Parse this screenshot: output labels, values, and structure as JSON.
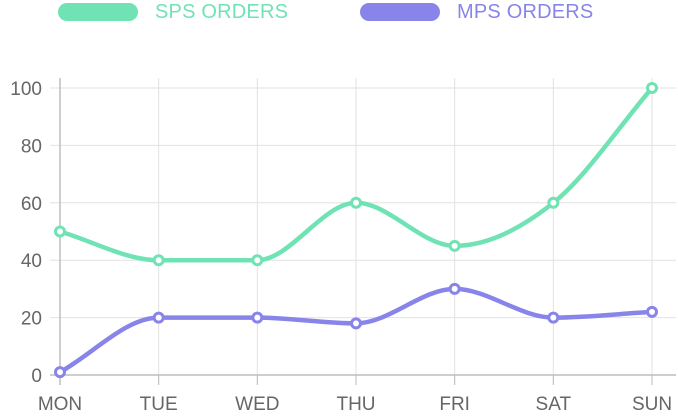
{
  "chart_data": {
    "type": "line",
    "categories": [
      "MON",
      "TUE",
      "WED",
      "THU",
      "FRI",
      "SAT",
      "SUN"
    ],
    "series": [
      {
        "name": "SPS ORDERS",
        "color": "#6fe3b4",
        "values": [
          50,
          40,
          40,
          60,
          45,
          60,
          100
        ]
      },
      {
        "name": "MPS ORDERS",
        "color": "#8884ea",
        "values": [
          1,
          20,
          20,
          18,
          30,
          20,
          22
        ]
      }
    ],
    "ylim": [
      0,
      100
    ],
    "yticks": [
      0,
      20,
      40,
      60,
      80,
      100
    ],
    "grid": true,
    "legend_position": "top"
  }
}
